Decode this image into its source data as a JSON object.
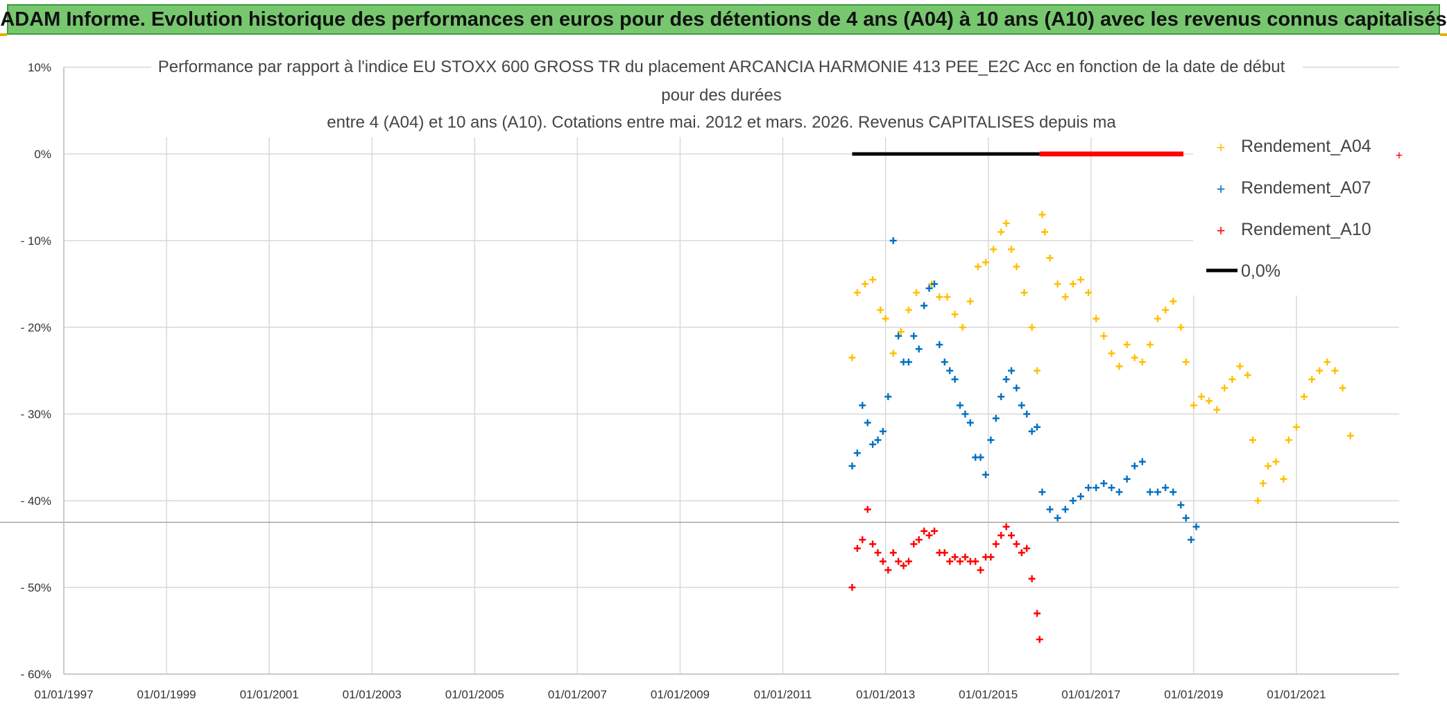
{
  "banner": {
    "title": "ADAM Informe. Evolution historique des performances en euros pour des détentions de 4 ans (A04) à 10 ans (A10) avec les revenus connus capitalisés"
  },
  "chart_data": {
    "type": "scatter",
    "title_lines": [
      "Performance par rapport à l'indice EU STOXX 600 GROSS TR  du placement ARCANCIA HARMONIE 413 PEE_E2C Acc en fonction de la date de début",
      "pour des durées",
      "entre 4 (A04) et 10 ans (A10). Cotations entre mai. 2012 et mars. 2026. Revenus CAPITALISES depuis ma"
    ],
    "xlabel": "",
    "ylabel": "",
    "xlim": [
      1997.0,
      2023.0
    ],
    "ylim": [
      -60,
      10
    ],
    "x_ticks": [
      "01/01/1997",
      "01/01/1999",
      "01/01/2001",
      "01/01/2003",
      "01/01/2005",
      "01/01/2007",
      "01/01/2009",
      "01/01/2011",
      "01/01/2013",
      "01/01/2015",
      "01/01/2017",
      "01/01/2019",
      "01/01/2021"
    ],
    "y_ticks": [
      "10%",
      "0%",
      "- 10%",
      "- 20%",
      "- 30%",
      "- 40%",
      "- 50%",
      "- 60%"
    ],
    "legend_position": "top-right",
    "series": [
      {
        "name": "Rendement_A04",
        "color": "#ffc000",
        "x": [
          2012.35,
          2012.45,
          2012.6,
          2012.75,
          2012.9,
          2013.0,
          2013.15,
          2013.3,
          2013.45,
          2013.6,
          2013.75,
          2013.9,
          2014.05,
          2014.2,
          2014.35,
          2014.5,
          2014.65,
          2014.8,
          2014.95,
          2015.1,
          2015.25,
          2015.35,
          2015.45,
          2015.55,
          2015.7,
          2015.85,
          2015.95,
          2016.05,
          2016.1,
          2016.2,
          2016.35,
          2016.5,
          2016.65,
          2016.8,
          2016.95,
          2017.1,
          2017.25,
          2017.4,
          2017.55,
          2017.7,
          2017.85,
          2018.0,
          2018.15,
          2018.3,
          2018.45,
          2018.6,
          2018.75,
          2018.85,
          2019.0,
          2019.15,
          2019.3,
          2019.45,
          2019.6,
          2019.75,
          2019.9,
          2020.05,
          2020.15,
          2020.25,
          2020.35,
          2020.45,
          2020.6,
          2020.75,
          2020.85,
          2021.0,
          2021.15,
          2021.3,
          2021.45,
          2021.6,
          2021.75,
          2021.9,
          2022.05
        ],
        "y": [
          -23.5,
          -16,
          -15,
          -14.5,
          -18,
          -19,
          -23,
          -20.5,
          -18,
          -16,
          -17.5,
          -15,
          -16.5,
          -16.5,
          -18.5,
          -20,
          -17,
          -13,
          -12.5,
          -11,
          -9,
          -8,
          -11,
          -13,
          -16,
          -20,
          -25,
          -7,
          -9,
          -12,
          -15,
          -16.5,
          -15,
          -14.5,
          -16,
          -19,
          -21,
          -23,
          -24.5,
          -22,
          -23.5,
          -24,
          -22,
          -19,
          -18,
          -17,
          -20,
          -24,
          -29,
          -28,
          -28.5,
          -29.5,
          -27,
          -26,
          -24.5,
          -25.5,
          -33,
          -40,
          -38,
          -36,
          -35.5,
          -37.5,
          -33,
          -31.5,
          -28,
          -26,
          -25,
          -24,
          -25,
          -27,
          -32.5
        ]
      },
      {
        "name": "Rendement_A07",
        "color": "#0070c0",
        "x": [
          2012.35,
          2012.45,
          2012.55,
          2012.65,
          2012.75,
          2012.85,
          2012.95,
          2013.05,
          2013.15,
          2013.25,
          2013.35,
          2013.45,
          2013.55,
          2013.65,
          2013.75,
          2013.85,
          2013.95,
          2014.05,
          2014.15,
          2014.25,
          2014.35,
          2014.45,
          2014.55,
          2014.65,
          2014.75,
          2014.85,
          2014.95,
          2015.05,
          2015.15,
          2015.25,
          2015.35,
          2015.45,
          2015.55,
          2015.65,
          2015.75,
          2015.85,
          2015.95,
          2016.05,
          2016.2,
          2016.35,
          2016.5,
          2016.65,
          2016.8,
          2016.95,
          2017.1,
          2017.25,
          2017.4,
          2017.55,
          2017.7,
          2017.85,
          2018.0,
          2018.15,
          2018.3,
          2018.45,
          2018.6,
          2018.75,
          2018.85,
          2018.95,
          2019.05
        ],
        "y": [
          -36,
          -34.5,
          -29,
          -31,
          -33.5,
          -33,
          -32,
          -28,
          -10,
          -21,
          -24,
          -24,
          -21,
          -22.5,
          -17.5,
          -15.5,
          -15,
          -22,
          -24,
          -25,
          -26,
          -29,
          -30,
          -31,
          -35,
          -35,
          -37,
          -33,
          -30.5,
          -28,
          -26,
          -25,
          -27,
          -29,
          -30,
          -32,
          -31.5,
          -39,
          -41,
          -42,
          -41,
          -40,
          -39.5,
          -38.5,
          -38.5,
          -38,
          -38.5,
          -39,
          -37.5,
          -36,
          -35.5,
          -39,
          -39,
          -38.5,
          -39,
          -40.5,
          -42,
          -44.5,
          -43
        ]
      },
      {
        "name": "Rendement_A10",
        "color": "#ff0000",
        "x": [
          2012.35,
          2012.45,
          2012.55,
          2012.65,
          2012.75,
          2012.85,
          2012.95,
          2013.05,
          2013.15,
          2013.25,
          2013.35,
          2013.45,
          2013.55,
          2013.65,
          2013.75,
          2013.85,
          2013.95,
          2014.05,
          2014.15,
          2014.25,
          2014.35,
          2014.45,
          2014.55,
          2014.65,
          2014.75,
          2014.85,
          2014.95,
          2015.05,
          2015.15,
          2015.25,
          2015.35,
          2015.45,
          2015.55,
          2015.65,
          2015.75,
          2015.85,
          2015.95,
          2016.0
        ],
        "y": [
          -50,
          -45.5,
          -44.5,
          -41,
          -45,
          -46,
          -47,
          -48,
          -46,
          -47,
          -47.5,
          -47,
          -45,
          -44.5,
          -43.5,
          -44,
          -43.5,
          -46,
          -46,
          -47,
          -46.5,
          -47,
          -46.5,
          -47,
          -47,
          -48,
          -46.5,
          -46.5,
          -45,
          -44,
          -43,
          -44,
          -45,
          -46,
          -45.5,
          -49,
          -53,
          -56
        ]
      },
      {
        "name": "0,0%",
        "color": "#000000",
        "x": [
          2012.35,
          2016.0
        ],
        "y": [
          0,
          0
        ]
      }
    ],
    "extra_segment": {
      "color": "#ff0000",
      "x": [
        2016.0,
        2018.8
      ],
      "y": [
        0,
        0
      ]
    }
  }
}
